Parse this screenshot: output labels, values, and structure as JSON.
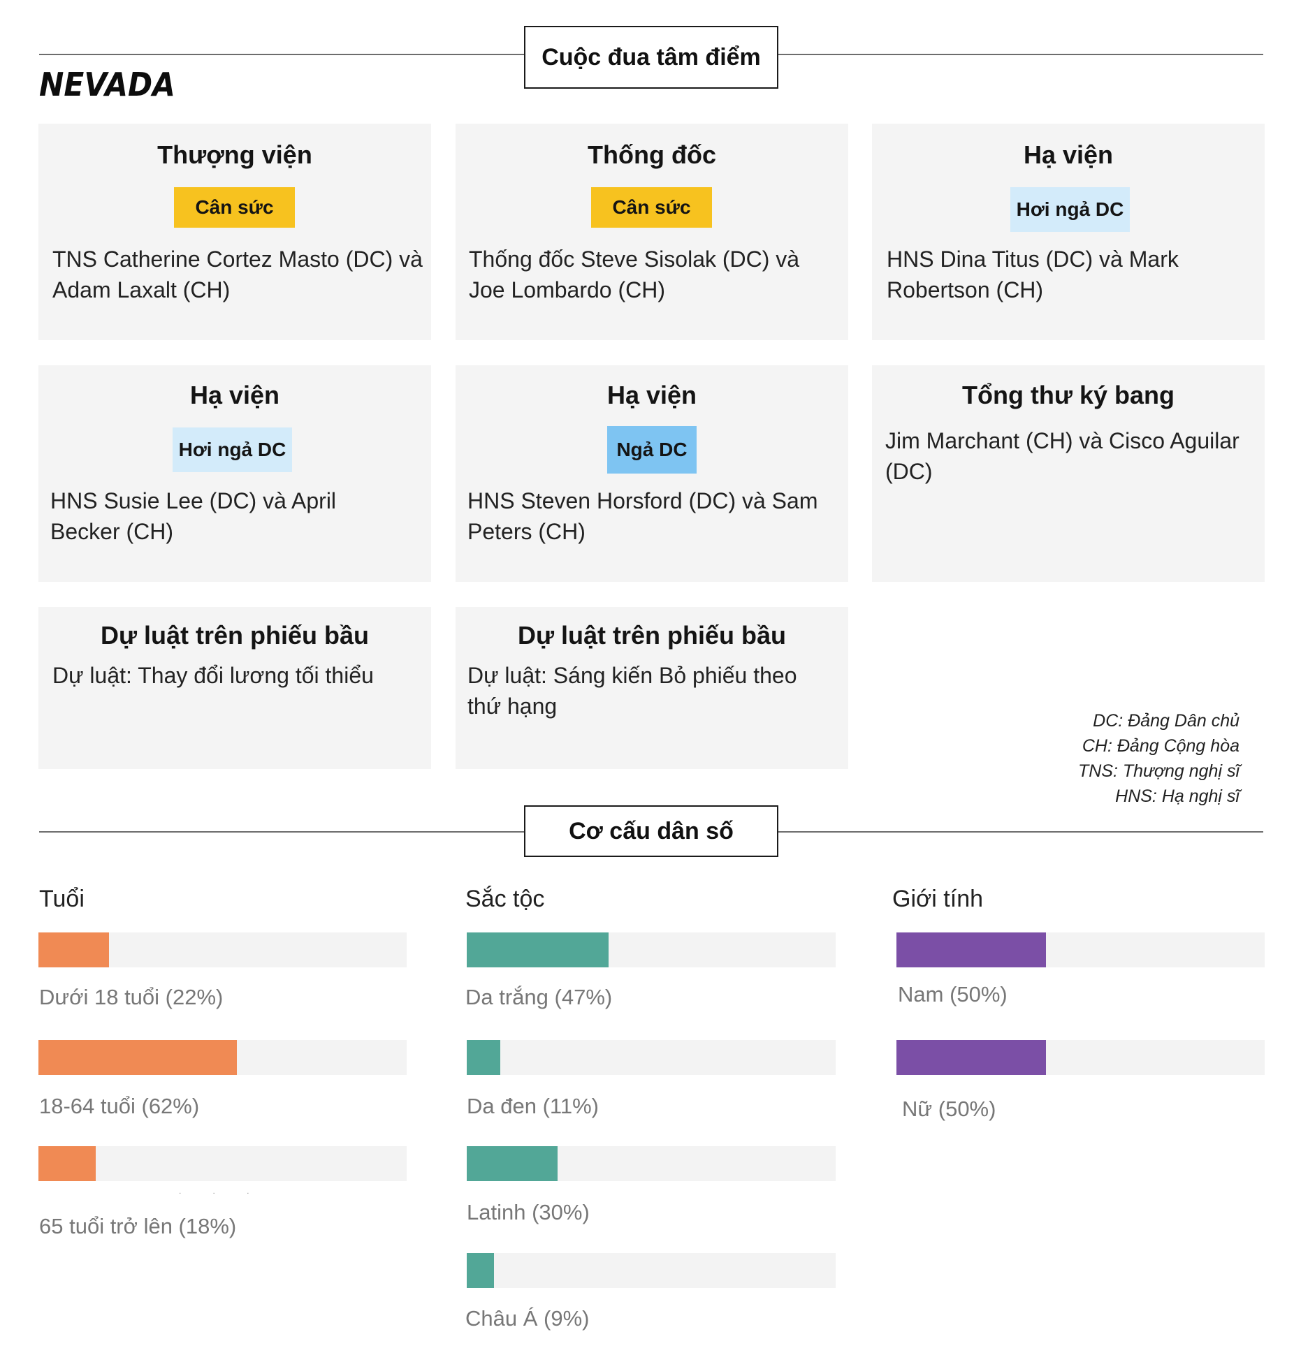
{
  "header": {
    "section_title": "Cuộc đua tâm điểm",
    "state": "NEVADA"
  },
  "races": [
    {
      "title": "Thượng viện",
      "rating": "Cân sức",
      "text": "TNS Catherine Cortez Masto (DC) và Adam Laxalt (CH)"
    },
    {
      "title": "Thống đốc",
      "rating": "Cân sức",
      "text": "Thống đốc Steve Sisolak (DC) và Joe Lombardo (CH)"
    },
    {
      "title": "Hạ viện",
      "rating": "Hơi ngả DC",
      "text": "HNS Dina Titus (DC) và Mark Robertson (CH)"
    },
    {
      "title": "Hạ viện",
      "rating": "Hơi ngả DC",
      "text": "HNS Susie Lee (DC) và April Becker (CH)"
    },
    {
      "title": "Hạ viện",
      "rating": "Ngả DC",
      "text": "HNS Steven Horsford (DC) và Sam Peters (CH)"
    },
    {
      "title": "Tổng thư ký bang",
      "text": "Jim Marchant (CH) và Cisco Aguilar (DC)"
    },
    {
      "title": "Dự luật trên phiếu bầu",
      "text": "Dự luật: Thay đổi lương tối thiểu"
    },
    {
      "title": "Dự luật trên phiếu bầu",
      "text": "Dự luật: Sáng kiến Bỏ phiếu theo thứ hạng"
    }
  ],
  "legend": [
    "DC: Đảng Dân chủ",
    "CH: Đảng Cộng hòa",
    "TNS: Thượng nghị sĩ",
    "HNS: Hạ nghị sĩ"
  ],
  "demographics": {
    "section_title": "Cơ cấu dân số",
    "age": {
      "title": "Tuổi",
      "color": "#f08a54",
      "items": [
        {
          "label": "Dưới 18 tuổi (22%)",
          "value": 22
        },
        {
          "label": "18-64 tuổi (62%)",
          "value": 62
        },
        {
          "label": "65 tuổi trở lên (18%)",
          "value": 18
        }
      ]
    },
    "race": {
      "title": "Sắc tộc",
      "color": "#52a797",
      "items": [
        {
          "label": "Da trắng (47%)",
          "value": 47
        },
        {
          "label": "Da đen (11%)",
          "value": 11
        },
        {
          "label": "Latinh (30%)",
          "value": 30
        },
        {
          "label": "Châu Á (9%)",
          "value": 9
        }
      ]
    },
    "gender": {
      "title": "Giới tính",
      "color": "#7b4fa6",
      "items": [
        {
          "label": "Nam (50%)",
          "value": 50
        },
        {
          "label": "Nữ (50%)",
          "value": 50
        }
      ]
    }
  }
}
